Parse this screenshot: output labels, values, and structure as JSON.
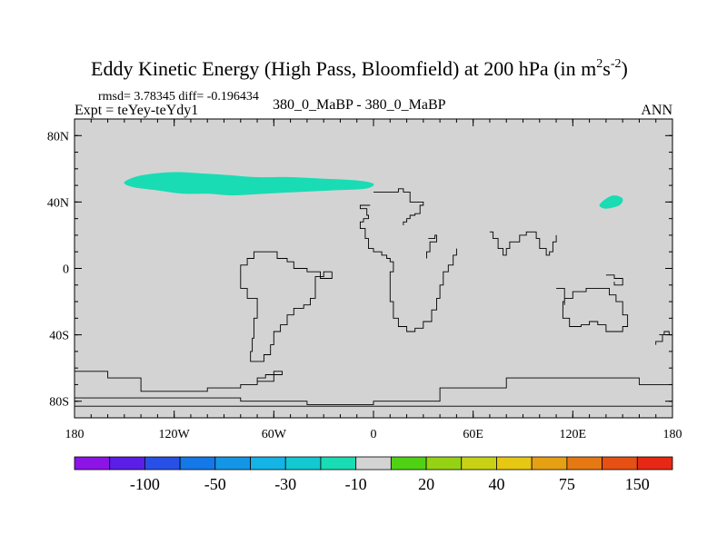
{
  "chart_data": {
    "type": "heatmap",
    "title": "Eddy Kinetic Energy (High Pass, Bloomfield) at 200 hPa (in m",
    "title_unit_sup1": "2",
    "title_unit_mid": "s",
    "title_unit_sup2": "-2",
    "title_close": ")",
    "stats": "rmsd= 3.78345 diff= -0.196434",
    "experiment": "Expt = teYey-teYdy1",
    "comparison": "380_0_MaBP - 380_0_MaBP",
    "season": "ANN",
    "x_range": [
      -180,
      180
    ],
    "y_range": [
      -90,
      90
    ],
    "x_ticks": [
      {
        "value": -180,
        "label": "180"
      },
      {
        "value": -120,
        "label": "120W"
      },
      {
        "value": -60,
        "label": "60W"
      },
      {
        "value": 0,
        "label": "0"
      },
      {
        "value": 60,
        "label": "60E"
      },
      {
        "value": 120,
        "label": "120E"
      },
      {
        "value": 180,
        "label": "180"
      }
    ],
    "y_ticks": [
      {
        "value": 80,
        "label": "80N"
      },
      {
        "value": 40,
        "label": "40N"
      },
      {
        "value": 0,
        "label": "0"
      },
      {
        "value": -40,
        "label": "40S"
      },
      {
        "value": -80,
        "label": "80S"
      }
    ],
    "background_color": "#d3d3d3",
    "anomaly_regions": [
      {
        "name": "north-pacific-negative",
        "value_bin": "-10",
        "color": "#19dcb4",
        "outline": [
          [
            -150,
            52
          ],
          [
            -140,
            56
          ],
          [
            -120,
            58
          ],
          [
            -100,
            57
          ],
          [
            -85,
            56
          ],
          [
            -70,
            55
          ],
          [
            -50,
            55
          ],
          [
            -30,
            54
          ],
          [
            -10,
            53
          ],
          [
            0,
            51
          ],
          [
            -5,
            48
          ],
          [
            -25,
            47
          ],
          [
            -45,
            46
          ],
          [
            -65,
            45
          ],
          [
            -85,
            44
          ],
          [
            -100,
            45
          ],
          [
            -115,
            45
          ],
          [
            -130,
            47
          ],
          [
            -145,
            49
          ]
        ]
      },
      {
        "name": "west-pacific-negative",
        "value_bin": "-10",
        "color": "#19dcb4",
        "outline": [
          [
            136,
            38
          ],
          [
            140,
            42
          ],
          [
            145,
            44
          ],
          [
            150,
            42
          ],
          [
            148,
            38
          ],
          [
            140,
            36
          ]
        ]
      }
    ],
    "coastlines": [
      [
        [
          0,
          46
        ],
        [
          5,
          46
        ],
        [
          15,
          48
        ],
        [
          18,
          46
        ],
        [
          22,
          44
        ],
        [
          22,
          40
        ],
        [
          28,
          40
        ],
        [
          30,
          38
        ],
        [
          28,
          33
        ],
        [
          25,
          32
        ],
        [
          22,
          30
        ],
        [
          20,
          28
        ],
        [
          18,
          26
        ]
      ],
      [
        [
          -2,
          38
        ],
        [
          -5,
          38
        ],
        [
          -8,
          36
        ],
        [
          -4,
          32
        ],
        [
          -3,
          30
        ],
        [
          -6,
          28
        ],
        [
          -8,
          24
        ],
        [
          -5,
          18
        ],
        [
          -3,
          12
        ],
        [
          0,
          10
        ],
        [
          5,
          8
        ],
        [
          8,
          6
        ],
        [
          10,
          4
        ],
        [
          12,
          2
        ],
        [
          12,
          -2
        ],
        [
          10,
          -10
        ],
        [
          10,
          -20
        ],
        [
          12,
          -30
        ],
        [
          15,
          -35
        ],
        [
          20,
          -38
        ],
        [
          25,
          -36
        ],
        [
          30,
          -32
        ],
        [
          35,
          -25
        ],
        [
          38,
          -18
        ],
        [
          40,
          -10
        ],
        [
          42,
          -2
        ],
        [
          45,
          2
        ],
        [
          48,
          8
        ],
        [
          50,
          12
        ]
      ],
      [
        [
          33,
          18
        ],
        [
          37,
          20
        ],
        [
          38,
          16
        ],
        [
          34,
          10
        ],
        [
          32,
          6
        ]
      ],
      [
        [
          -25,
          -2
        ],
        [
          -30,
          -5
        ],
        [
          -35,
          -10
        ],
        [
          -35,
          -18
        ],
        [
          -38,
          -22
        ],
        [
          -42,
          -24
        ],
        [
          -48,
          -28
        ],
        [
          -52,
          -34
        ],
        [
          -56,
          -38
        ],
        [
          -60,
          -46
        ],
        [
          -62,
          -52
        ],
        [
          -66,
          -56
        ],
        [
          -72,
          -56
        ],
        [
          -74,
          -50
        ],
        [
          -73,
          -42
        ],
        [
          -72,
          -30
        ],
        [
          -70,
          -18
        ],
        [
          -76,
          -12
        ],
        [
          -80,
          -4
        ],
        [
          -80,
          2
        ],
        [
          -76,
          6
        ],
        [
          -72,
          10
        ],
        [
          -65,
          10
        ],
        [
          -58,
          6
        ],
        [
          -52,
          4
        ],
        [
          -48,
          0
        ],
        [
          -40,
          -2
        ],
        [
          -32,
          -6
        ],
        [
          -25,
          -2
        ]
      ],
      [
        [
          110,
          -12
        ],
        [
          115,
          -20
        ],
        [
          114,
          -30
        ],
        [
          118,
          -35
        ],
        [
          125,
          -34
        ],
        [
          130,
          -32
        ],
        [
          135,
          -34
        ],
        [
          140,
          -38
        ],
        [
          146,
          -38
        ],
        [
          150,
          -35
        ],
        [
          153,
          -28
        ],
        [
          150,
          -20
        ],
        [
          146,
          -16
        ],
        [
          142,
          -12
        ],
        [
          138,
          -12
        ],
        [
          134,
          -12
        ],
        [
          128,
          -14
        ],
        [
          120,
          -18
        ],
        [
          115,
          -22
        ]
      ],
      [
        [
          70,
          22
        ],
        [
          72,
          18
        ],
        [
          75,
          12
        ],
        [
          78,
          8
        ],
        [
          80,
          12
        ],
        [
          82,
          16
        ],
        [
          88,
          20
        ],
        [
          92,
          22
        ],
        [
          98,
          18
        ],
        [
          100,
          12
        ],
        [
          104,
          8
        ],
        [
          106,
          10
        ],
        [
          108,
          16
        ],
        [
          110,
          20
        ]
      ],
      [
        [
          140,
          -4
        ],
        [
          145,
          -6
        ],
        [
          150,
          -10
        ],
        [
          145,
          -8
        ]
      ],
      [
        [
          172,
          -40
        ],
        [
          175,
          -38
        ],
        [
          178,
          -40
        ],
        [
          174,
          -44
        ],
        [
          170,
          -46
        ]
      ],
      [
        [
          -180,
          -62
        ],
        [
          -160,
          -66
        ],
        [
          -140,
          -74
        ],
        [
          -120,
          -74
        ],
        [
          -100,
          -72
        ],
        [
          -80,
          -70
        ],
        [
          -70,
          -66
        ],
        [
          -65,
          -64
        ],
        [
          -60,
          -62
        ],
        [
          -55,
          -64
        ],
        [
          -60,
          -68
        ],
        [
          -70,
          -70
        ]
      ],
      [
        [
          -180,
          -78
        ],
        [
          -140,
          -78
        ],
        [
          -80,
          -80
        ],
        [
          -40,
          -82
        ],
        [
          0,
          -80
        ],
        [
          40,
          -72
        ],
        [
          80,
          -66
        ],
        [
          120,
          -66
        ],
        [
          160,
          -70
        ],
        [
          180,
          -74
        ]
      ],
      [
        [
          -180,
          -83
        ],
        [
          180,
          -83
        ]
      ]
    ],
    "colorbar": {
      "labels": [
        "-100",
        "-50",
        "-30",
        "-10",
        "20",
        "40",
        "75",
        "150"
      ],
      "colors": [
        "#8c14e6",
        "#5a1ee6",
        "#2850e6",
        "#1478e6",
        "#1496e6",
        "#14b4e6",
        "#14c8d2",
        "#19dcb4",
        "#d3d3d3",
        "#50d214",
        "#96d214",
        "#c8d214",
        "#e6c814",
        "#e6a014",
        "#e67814",
        "#e65014",
        "#e62814"
      ]
    }
  }
}
